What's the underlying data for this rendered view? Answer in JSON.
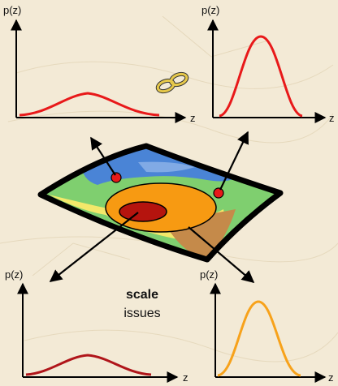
{
  "axis_labels": {
    "tl_y": "p(z)",
    "tl_x": "z",
    "tr_y": "p(z)",
    "tr_x": "z",
    "bl_y": "p(z)",
    "bl_x": "z",
    "br_y": "p(z)",
    "br_x": "z"
  },
  "caption": {
    "bold": "scale",
    "normal": "issues"
  },
  "colors": {
    "background": "#f3ead6",
    "curve_red": "#e8191a",
    "curve_darkred": "#b0151a",
    "curve_orange": "#f7a21b",
    "map_blue": "#4a84d6",
    "map_green": "#7fcf6f",
    "map_yellow": "#f4e86a",
    "map_orange": "#f79a12",
    "map_darkred": "#b5140e",
    "map_brown": "#c58a4a",
    "chain": "#e6c84a"
  },
  "chart_data": [
    {
      "type": "line",
      "panel": "top-left",
      "series": [
        {
          "color": "#e8191a",
          "shape": "broad-low-peak"
        }
      ]
    },
    {
      "type": "line",
      "panel": "top-right",
      "series": [
        {
          "color": "#e8191a",
          "shape": "narrow-high-peak"
        }
      ]
    },
    {
      "type": "line",
      "panel": "bottom-left",
      "series": [
        {
          "color": "#b0151a",
          "shape": "broad-low-peak"
        }
      ]
    },
    {
      "type": "line",
      "panel": "bottom-right",
      "series": [
        {
          "color": "#f7a21b",
          "shape": "narrow-high-peak"
        }
      ]
    }
  ]
}
